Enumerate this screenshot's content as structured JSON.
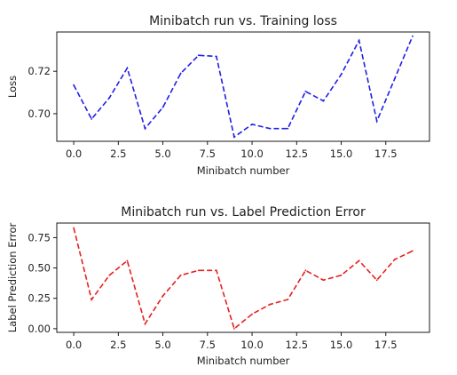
{
  "chart_data": [
    {
      "type": "line",
      "title": "Minibatch run vs. Training loss",
      "xlabel": "Minibatch number",
      "ylabel": "Loss",
      "xlim": [
        -0.95,
        19.95
      ],
      "ylim": [
        0.687,
        0.7385
      ],
      "xticks": [
        0.0,
        2.5,
        5.0,
        7.5,
        10.0,
        12.5,
        15.0,
        17.5
      ],
      "xtick_labels": [
        "0.0",
        "2.5",
        "5.0",
        "7.5",
        "10.0",
        "12.5",
        "15.0",
        "17.5"
      ],
      "yticks": [
        0.7,
        0.72
      ],
      "ytick_labels": [
        "0.70",
        "0.72"
      ],
      "grid": false,
      "series": [
        {
          "style": "dashed",
          "color": "#1f1fe8",
          "x": [
            0,
            1,
            2,
            3,
            4,
            5,
            6,
            7,
            8,
            9,
            10,
            11,
            12,
            13,
            14,
            15,
            16,
            17,
            18,
            19
          ],
          "values": [
            0.7135,
            0.6975,
            0.7075,
            0.7215,
            0.693,
            0.703,
            0.719,
            0.7275,
            0.727,
            0.689,
            0.695,
            0.693,
            0.693,
            0.7105,
            0.706,
            0.7185,
            0.7345,
            0.6965,
            0.7165,
            0.7365
          ]
        }
      ]
    },
    {
      "type": "line",
      "title": "Minibatch run vs. Label Prediction Error",
      "xlabel": "Minibatch number",
      "ylabel": "Label Prediction Error",
      "xlim": [
        -0.95,
        19.95
      ],
      "ylim": [
        -0.03,
        0.87
      ],
      "xticks": [
        0.0,
        2.5,
        5.0,
        7.5,
        10.0,
        12.5,
        15.0,
        17.5
      ],
      "xtick_labels": [
        "0.0",
        "2.5",
        "5.0",
        "7.5",
        "10.0",
        "12.5",
        "15.0",
        "17.5"
      ],
      "yticks": [
        0.0,
        0.25,
        0.5,
        0.75
      ],
      "ytick_labels": [
        "0.00",
        "0.25",
        "0.50",
        "0.75"
      ],
      "grid": false,
      "series": [
        {
          "style": "dashed",
          "color": "#e81f1f",
          "x": [
            0,
            1,
            2,
            3,
            4,
            5,
            6,
            7,
            8,
            9,
            10,
            11,
            12,
            13,
            14,
            15,
            16,
            17,
            18,
            19
          ],
          "values": [
            0.83,
            0.24,
            0.44,
            0.56,
            0.04,
            0.27,
            0.44,
            0.48,
            0.48,
            0.0,
            0.12,
            0.2,
            0.24,
            0.48,
            0.4,
            0.44,
            0.56,
            0.4,
            0.57,
            0.64
          ]
        }
      ]
    }
  ]
}
